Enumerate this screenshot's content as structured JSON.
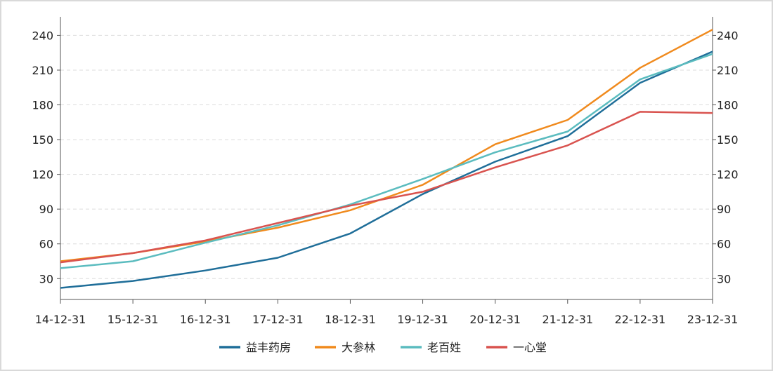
{
  "chart_data": {
    "type": "line",
    "x": [
      "14-12-31",
      "15-12-31",
      "16-12-31",
      "17-12-31",
      "18-12-31",
      "19-12-31",
      "20-12-31",
      "21-12-31",
      "22-12-31",
      "23-12-31"
    ],
    "series": [
      {
        "name": "益丰药房",
        "color": "#1f6e99",
        "values": [
          22,
          28,
          37,
          48,
          69,
          103,
          131,
          153,
          199,
          226
        ]
      },
      {
        "name": "大参林",
        "color": "#f08a1d",
        "values": [
          45,
          52,
          62,
          74,
          89,
          111,
          146,
          167,
          212,
          245
        ]
      },
      {
        "name": "老百姓",
        "color": "#5bbcbf",
        "values": [
          39,
          45,
          61,
          76,
          94,
          116,
          139,
          157,
          202,
          224
        ]
      },
      {
        "name": "一心堂",
        "color": "#d9534f",
        "values": [
          44,
          52,
          63,
          78,
          93,
          105,
          126,
          145,
          174,
          173
        ]
      }
    ],
    "y_ticks": [
      30,
      60,
      90,
      120,
      150,
      180,
      210,
      240
    ],
    "y_ticks_right": [
      30,
      60,
      90,
      120,
      150,
      180,
      210,
      240
    ],
    "ylim": [
      12,
      256
    ],
    "grid": "horizontal dashed",
    "legend": "bottom-center"
  }
}
